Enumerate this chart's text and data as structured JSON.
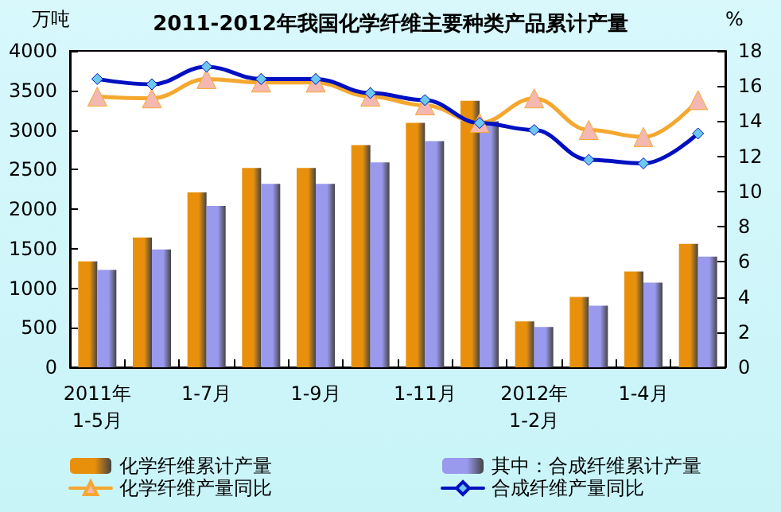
{
  "chart_data": {
    "type": "bar",
    "title": "2011-2012年我国化学纤维主要种类产品累计产量",
    "ylabel": "万吨",
    "y2label": "%",
    "categories": [
      "2011年\n1-5月",
      null,
      "1-7月",
      null,
      "1-9月",
      null,
      "1-11月",
      null,
      "2012年\n1-2月",
      null,
      "1-4月",
      null
    ],
    "series": [
      {
        "name": "化学纤维累计产量",
        "color": "#e8900c",
        "values": [
          1340,
          1640,
          2210,
          2520,
          2520,
          2810,
          3090,
          3370,
          580,
          890,
          1210,
          1560
        ]
      },
      {
        "name": "其中：合成纤维累计产量",
        "color": "#9999ee",
        "values": [
          1230,
          1490,
          2040,
          2320,
          2320,
          2590,
          2860,
          3110,
          510,
          780,
          1070,
          1400
        ]
      },
      {
        "name": "化学纤维产量同比",
        "type": "line",
        "axis": "y2",
        "marker": "triangle",
        "color": "#f5a830",
        "values": [
          15.4,
          15.3,
          16.4,
          16.2,
          16.2,
          15.4,
          14.9,
          13.9,
          15.3,
          13.5,
          13.1,
          15.2
        ]
      },
      {
        "name": "合成纤维产量同比",
        "type": "line",
        "axis": "y2",
        "marker": "diamond",
        "color": "#0010c0",
        "values": [
          16.4,
          16.1,
          17.1,
          16.4,
          16.4,
          15.6,
          15.2,
          13.9,
          13.5,
          11.8,
          11.6,
          13.3
        ]
      }
    ],
    "ylim": [
      0,
      4000
    ],
    "yticks": [
      0,
      500,
      1000,
      1500,
      2000,
      2500,
      3000,
      3500,
      4000
    ],
    "y2lim": [
      0,
      18
    ],
    "y2ticks": [
      0,
      2,
      4,
      6,
      8,
      10,
      12,
      14,
      16,
      18
    ],
    "grid": false,
    "legend": "bottom"
  }
}
